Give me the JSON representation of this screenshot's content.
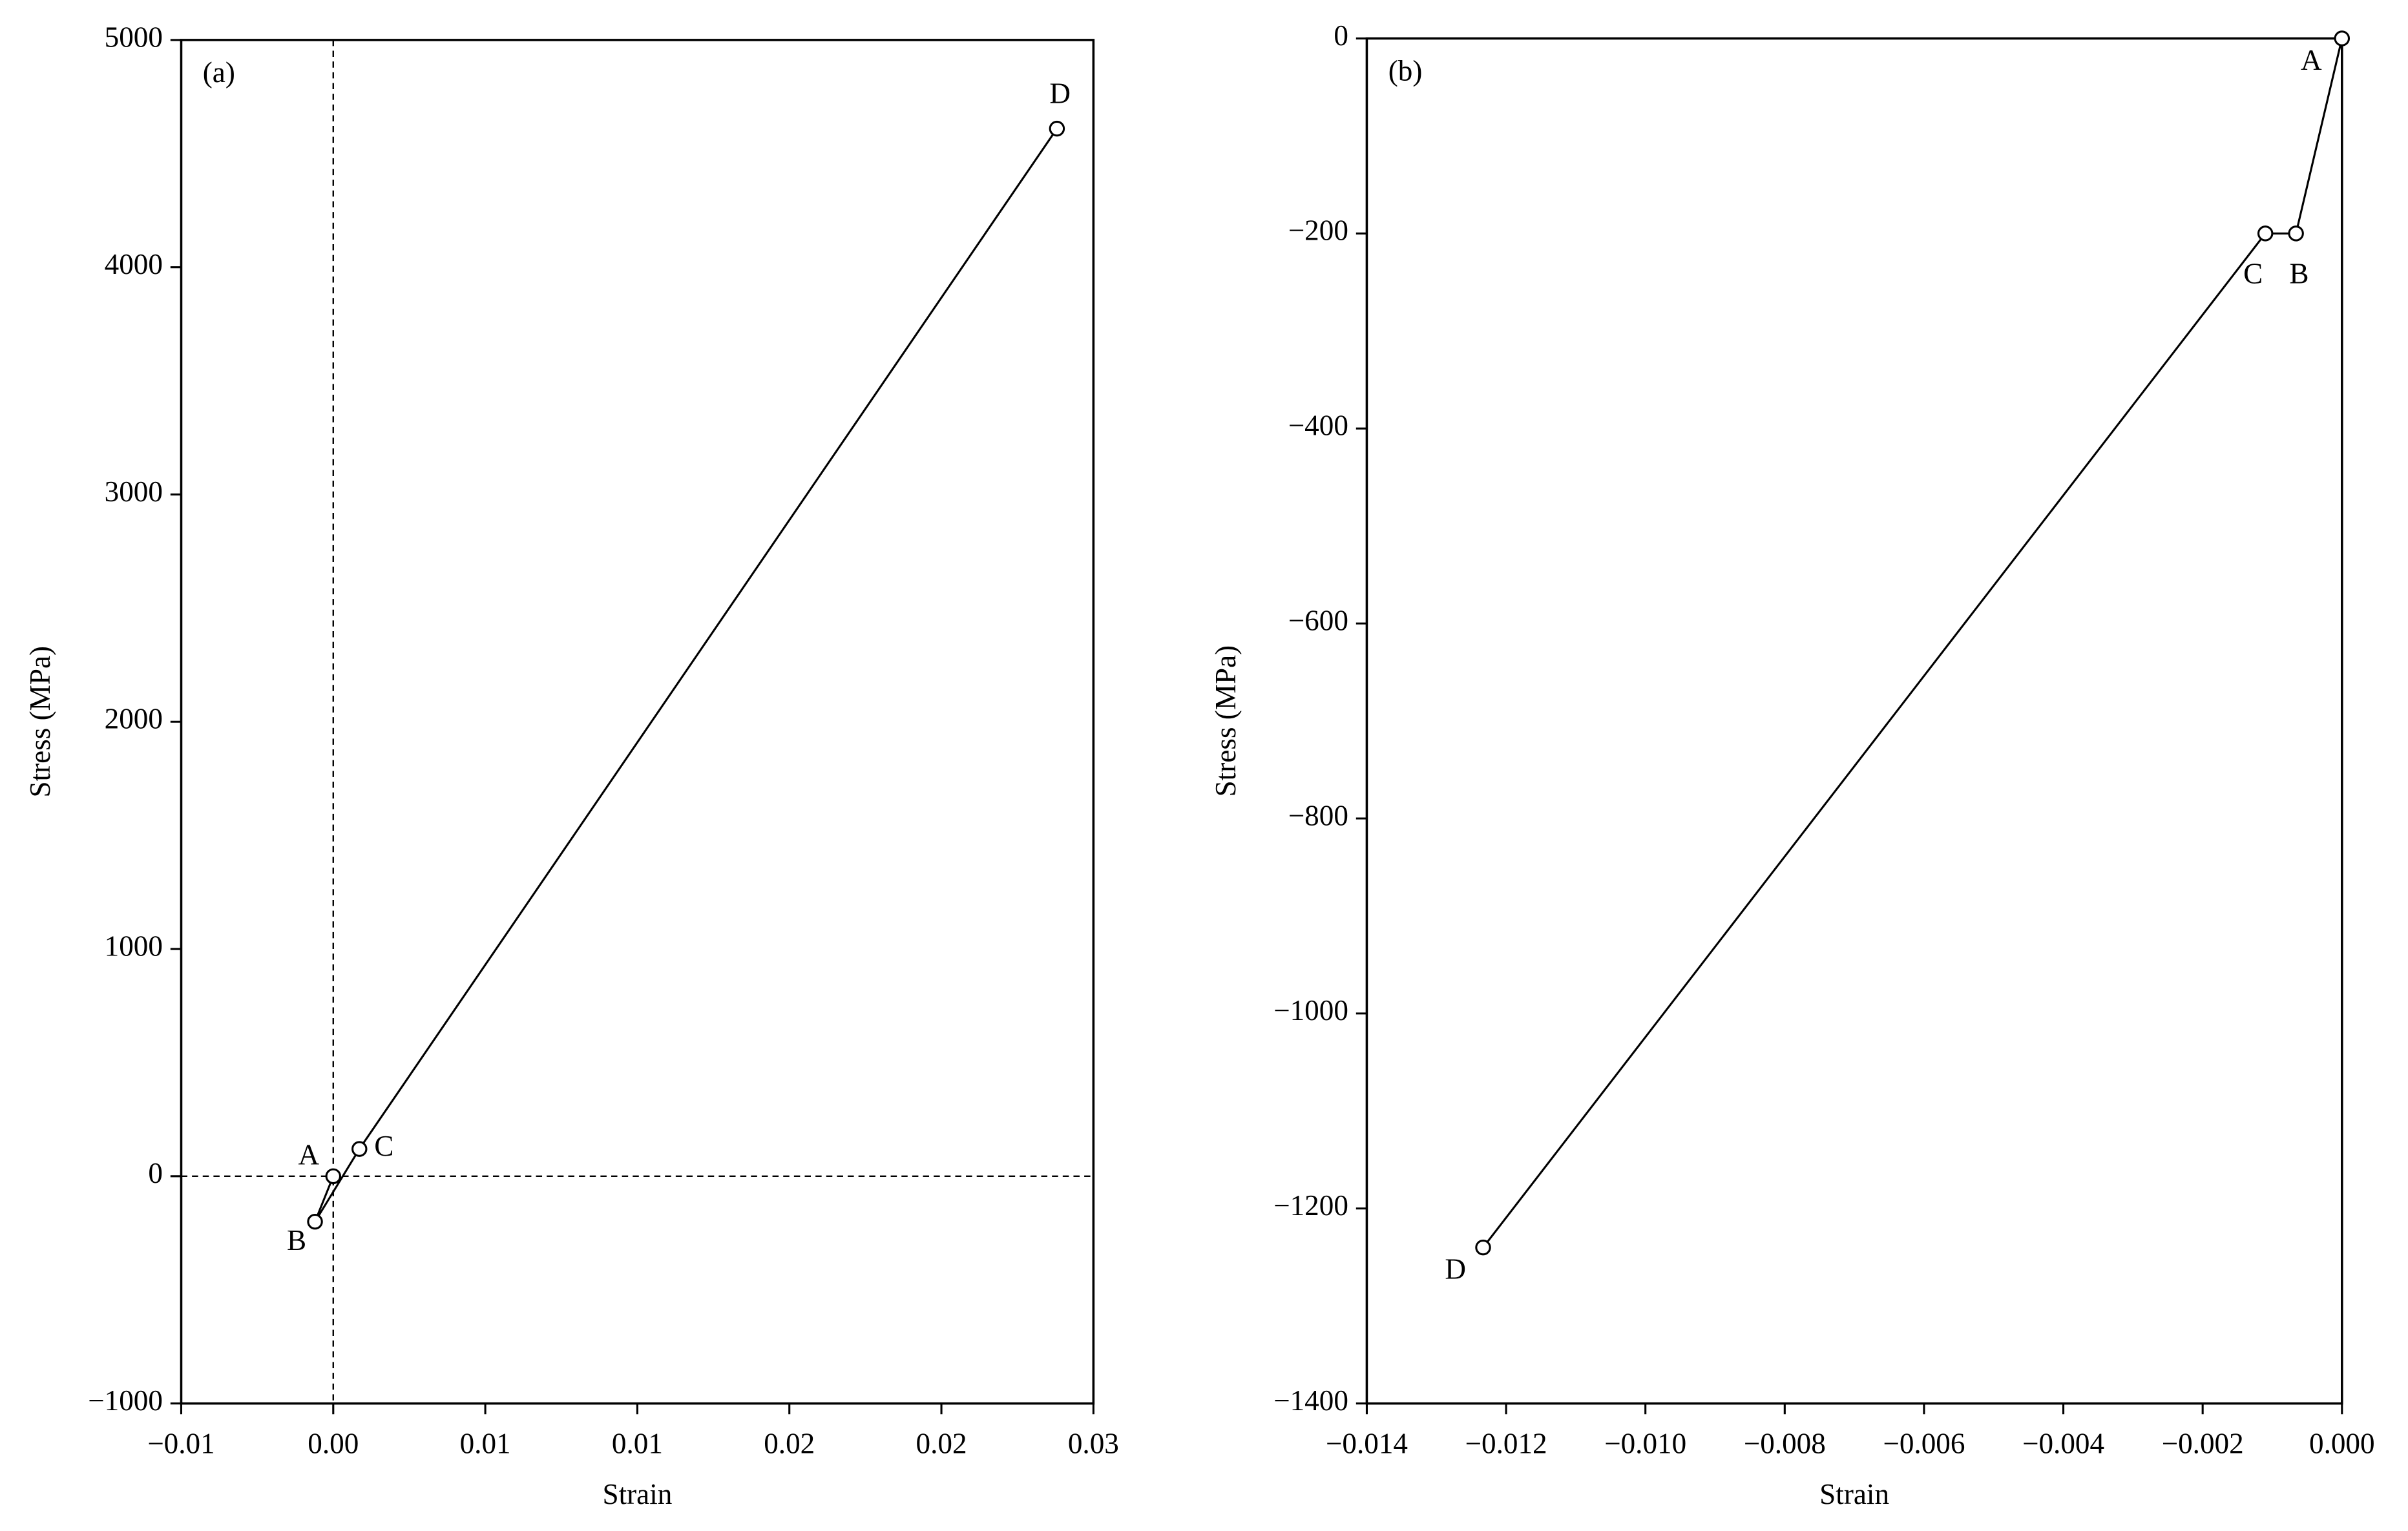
{
  "chart_data": [
    {
      "type": "line",
      "panel_label": "(a)",
      "xlabel": "Strain",
      "ylabel": "Stress (MPa)",
      "x": [
        0,
        -0.0006,
        0.00086,
        0.0238
      ],
      "values": [
        0,
        -200,
        120,
        4610
      ],
      "point_labels": [
        "A",
        "B",
        "C",
        "D"
      ],
      "color": "#000000",
      "zero_lines": true,
      "xlim": [
        -0.005,
        0.025
      ],
      "xticks": [
        {
          "value": -0.005,
          "label": "−0.01"
        },
        {
          "value": 0,
          "label": "0.00"
        },
        {
          "value": 0.005,
          "label": "0.01"
        },
        {
          "value": 0.01,
          "label": "0.01"
        },
        {
          "value": 0.015,
          "label": "0.02"
        },
        {
          "value": 0.02,
          "label": "0.02"
        },
        {
          "value": 0.025,
          "label": "0.03"
        }
      ],
      "ylim": [
        -1000,
        5000
      ],
      "yticks": [
        {
          "value": -1000,
          "label": "−1000"
        },
        0,
        1000,
        2000,
        3000,
        4000,
        5000
      ]
    },
    {
      "type": "line",
      "panel_label": "(b)",
      "xlabel": "Strain",
      "ylabel": "Stress (MPa)",
      "x": [
        0,
        -0.00066,
        -0.0011,
        -0.01233
      ],
      "values": [
        0,
        -200,
        -200,
        -1240
      ],
      "point_labels": [
        "A",
        "B",
        "C",
        "D"
      ],
      "color": "#000000",
      "zero_lines": false,
      "xlim": [
        -0.014,
        0
      ],
      "xticks": [
        {
          "value": -0.014,
          "label": "−0.014"
        },
        {
          "value": -0.012,
          "label": "−0.012"
        },
        {
          "value": -0.01,
          "label": "−0.010"
        },
        {
          "value": -0.008,
          "label": "−0.008"
        },
        {
          "value": -0.006,
          "label": "−0.006"
        },
        {
          "value": -0.004,
          "label": "−0.004"
        },
        {
          "value": -0.002,
          "label": "−0.002"
        },
        {
          "value": 0,
          "label": "0.000"
        }
      ],
      "ylim": [
        -1400,
        0
      ],
      "yticks": [
        {
          "value": -1400,
          "label": "−1400"
        },
        {
          "value": -1200,
          "label": "−1200"
        },
        {
          "value": -1000,
          "label": "−1000"
        },
        {
          "value": -800,
          "label": "−800"
        },
        {
          "value": -600,
          "label": "−600"
        },
        {
          "value": -400,
          "label": "−400"
        },
        {
          "value": -200,
          "label": "−200"
        },
        0
      ]
    }
  ]
}
